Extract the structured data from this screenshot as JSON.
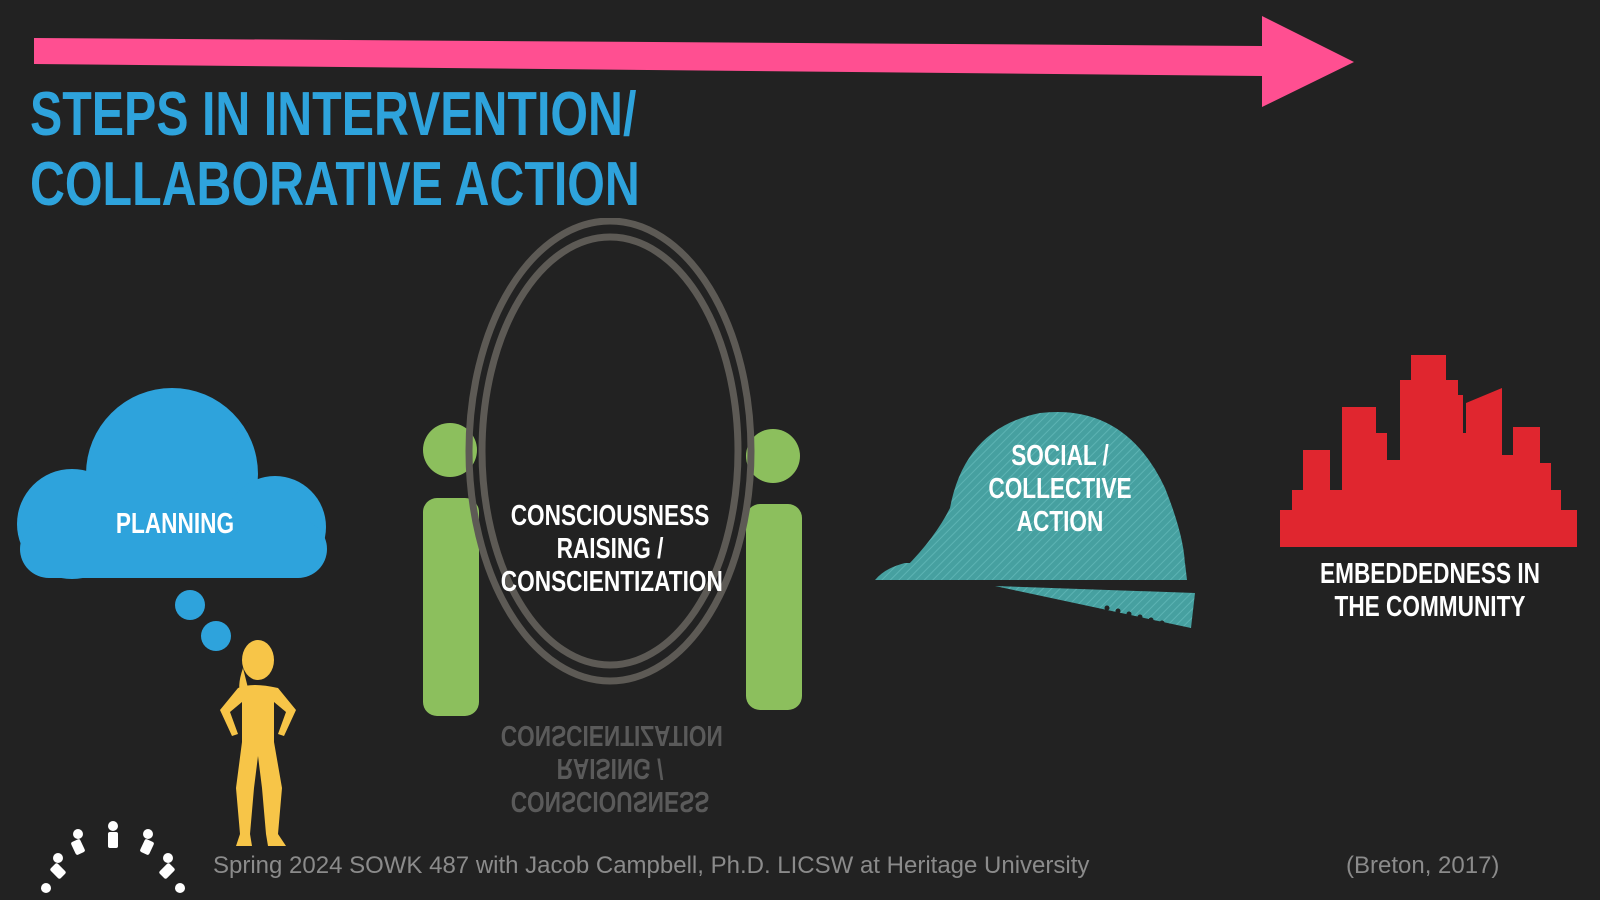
{
  "slide": {
    "title_line1": "STEPS IN INTERVENTION/",
    "title_line2": "COLLABORATIVE ACTION",
    "steps": [
      {
        "label": "PLANNING",
        "icon": "thought-cloud-icon"
      },
      {
        "label": "CONSCIOUSNESS\nRAISING /\nCONSCIENTIZATION",
        "icon": "mirror-icon"
      },
      {
        "label": "SOCIAL /\nCOLLECTIVE\nACTION",
        "icon": "hard-hat-icon"
      },
      {
        "label": "EMBEDDEDNESS IN\nTHE COMMUNITY",
        "icon": "city-skyline-icon"
      }
    ],
    "footer": "Spring 2024 SOWK 487 with Jacob Campbell, Ph.D. LICSW at Heritage University",
    "citation": "(Breton, 2017)"
  },
  "colors": {
    "background": "#222222",
    "arrow": "#ff4f91",
    "title": "#2ea3dc",
    "cloud": "#2ea3dc",
    "person": "#f7c548",
    "figures": "#8cbf5d",
    "mirror": "#5d5a55",
    "hard_hat": "#46a0a0",
    "city": "#e0262f",
    "footer_text": "#8b8b8b"
  }
}
